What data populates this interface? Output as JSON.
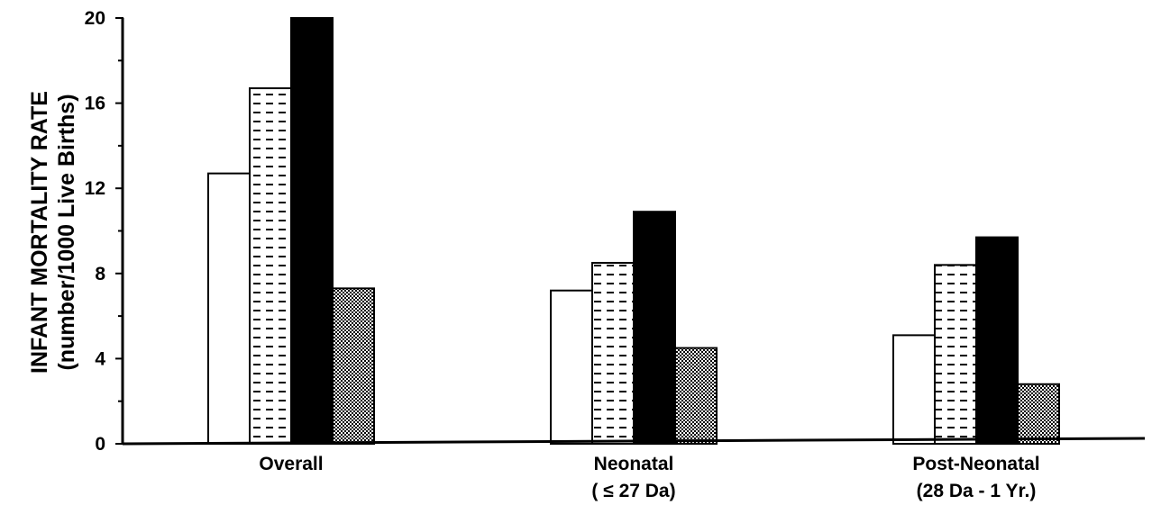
{
  "chart_data": {
    "type": "bar",
    "ylabel": [
      "INFANT MORTALITY RATE",
      "(number/1000 Live Births)"
    ],
    "xlabel": "",
    "ylim": [
      0,
      20
    ],
    "yticks": [
      0,
      4,
      8,
      12,
      16,
      20
    ],
    "grid": false,
    "categories": [
      {
        "lines": [
          "Overall"
        ]
      },
      {
        "lines": [
          "Neonatal",
          "( ≤ 27 Da)"
        ]
      },
      {
        "lines": [
          "Post-Neonatal",
          "(28 Da - 1 Yr.)"
        ]
      }
    ],
    "series": [
      {
        "fill": "white",
        "values": [
          12.7,
          7.2,
          5.1
        ]
      },
      {
        "fill": "dash-hatch",
        "values": [
          16.7,
          8.5,
          8.4
        ]
      },
      {
        "fill": "black",
        "values": [
          20.0,
          10.9,
          9.7
        ]
      },
      {
        "fill": "dot-stipple",
        "values": [
          7.3,
          4.5,
          2.8
        ]
      }
    ]
  }
}
